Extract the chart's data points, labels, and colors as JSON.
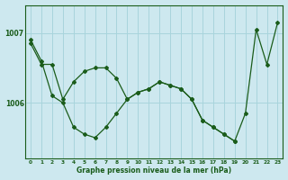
{
  "xlabel": "Graphe pression niveau de la mer (hPa)",
  "bg_color": "#cde8ef",
  "grid_color": "#a8d4dc",
  "line_color": "#1a5c1a",
  "marker": "D",
  "marker_size": 2.0,
  "line_width": 0.9,
  "x_ticks": [
    0,
    1,
    2,
    3,
    4,
    5,
    6,
    7,
    8,
    9,
    10,
    11,
    12,
    13,
    14,
    15,
    16,
    17,
    18,
    19,
    20,
    21,
    22,
    23
  ],
  "xlim": [
    -0.5,
    23.5
  ],
  "ylim": [
    1005.2,
    1007.4
  ],
  "y_ticks": [
    1006,
    1007
  ],
  "series1_x": [
    0,
    1,
    2,
    3,
    4,
    5,
    6,
    7,
    8,
    9,
    10,
    11,
    12,
    13,
    14,
    15,
    16,
    17,
    18,
    19,
    20,
    21,
    22,
    23
  ],
  "series1_y": [
    1006.85,
    1006.55,
    1006.55,
    1006.05,
    1006.3,
    1006.45,
    1006.5,
    1006.5,
    1006.35,
    1006.05,
    1006.15,
    1006.2,
    1006.3,
    1006.25,
    1006.2,
    1006.05,
    1005.75,
    1005.65,
    1005.55,
    1005.45,
    1005.85,
    1007.05,
    1006.55,
    1007.15
  ],
  "series2_x": [
    0,
    1,
    2,
    3,
    4,
    5,
    6,
    7,
    8,
    9,
    10,
    11,
    12,
    13,
    14,
    15,
    16,
    17,
    18,
    19
  ],
  "series2_y": [
    1006.9,
    1006.6,
    1006.1,
    1006.0,
    1005.65,
    1005.55,
    1005.5,
    1005.65,
    1005.85,
    1006.05,
    1006.15,
    1006.2,
    1006.3,
    1006.25,
    1006.2,
    1006.05,
    1005.75,
    1005.65,
    1005.55,
    1005.45
  ]
}
